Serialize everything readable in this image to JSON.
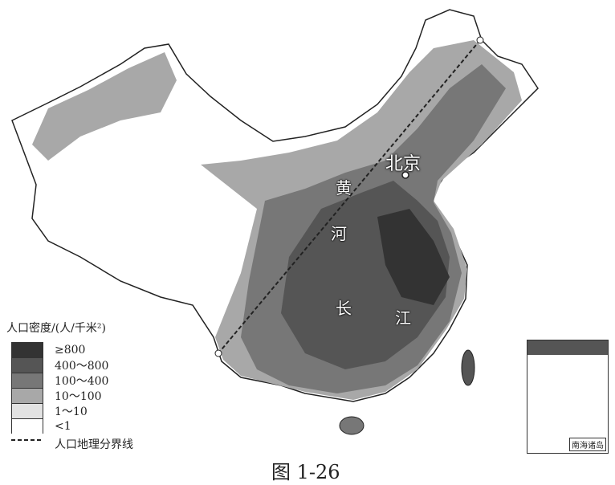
{
  "map": {
    "caption": "图 1-26",
    "labels": {
      "beijing": "北京",
      "huang": "黄",
      "he": "河",
      "chang": "长",
      "jiang": "江",
      "south_sea_islands": "南海诸岛"
    },
    "divider_line": "人口地理分界线"
  },
  "legend": {
    "title": "人口密度/(人/千米²)",
    "classes": [
      {
        "label": "≥800",
        "color": "#333333"
      },
      {
        "label": "400～800",
        "color": "#555555"
      },
      {
        "label": "100～400",
        "color": "#777777"
      },
      {
        "label": "10～100",
        "color": "#a8a8a8"
      },
      {
        "label": "1～10",
        "color": "#e2e2e2"
      },
      {
        "label": "<1",
        "color": "#ffffff"
      }
    ],
    "line_label": "人口地理分界线"
  }
}
